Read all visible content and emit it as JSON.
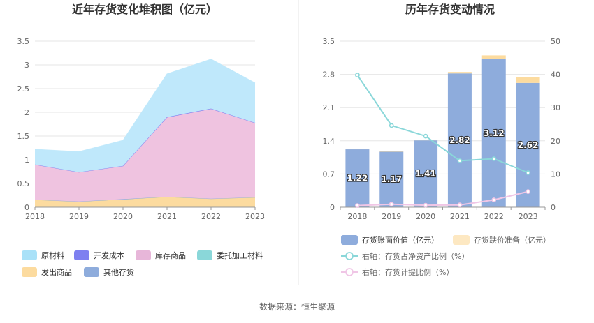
{
  "source": "数据来源：恒生聚源",
  "chart_data": [
    {
      "type": "area",
      "stacked": true,
      "title": "近年存货变化堆积图（亿元）",
      "x": [
        "2018",
        "2019",
        "2020",
        "2021",
        "2022",
        "2023"
      ],
      "ylim": [
        0,
        3.5
      ],
      "yticks": [
        "0",
        "0.5",
        "1",
        "1.5",
        "2",
        "2.5",
        "3",
        "3.5"
      ],
      "grid": true,
      "legend_position": "bottom",
      "series": [
        {
          "name": "发出商品",
          "color": "#fcdb9f",
          "values": [
            0.16,
            0.12,
            0.16,
            0.22,
            0.18,
            0.21
          ]
        },
        {
          "name": "其他存货",
          "color": "#8eacdc",
          "values": [
            0.0,
            0.0,
            0.01,
            0.0,
            0.0,
            0.0
          ]
        },
        {
          "name": "委托加工材料",
          "color": "#8ad7d9",
          "values": [
            0.0,
            0.0,
            0.0,
            0.0,
            0.0,
            0.0
          ]
        },
        {
          "name": "库存商品",
          "color": "#efc3e0",
          "values": [
            0.74,
            0.62,
            0.7,
            1.67,
            1.89,
            1.57
          ]
        },
        {
          "name": "开发成本",
          "color": "#7e80f0",
          "values": [
            0.0,
            0.0,
            0.0,
            0.01,
            0.01,
            0.0
          ]
        },
        {
          "name": "原材料",
          "color": "#bfe8fb",
          "values": [
            0.32,
            0.43,
            0.54,
            0.91,
            1.04,
            0.84
          ]
        }
      ],
      "legend": [
        {
          "name": "原材料",
          "color": "#a9e1f8"
        },
        {
          "name": "开发成本",
          "color": "#7e80f0"
        },
        {
          "name": "库存商品",
          "color": "#e7b6d9"
        },
        {
          "name": "委托加工材料",
          "color": "#8ad7d9"
        },
        {
          "name": "发出商品",
          "color": "#fcdb9f"
        },
        {
          "name": "其他存货",
          "color": "#8eacdc"
        }
      ]
    },
    {
      "type": "bar",
      "stacked": true,
      "title": "历年存货变动情况",
      "categories": [
        "2018",
        "2019",
        "2020",
        "2021",
        "2022",
        "2023"
      ],
      "ylim": [
        0,
        3.5
      ],
      "yticks": [
        "0",
        "0.7",
        "1.4",
        "2.1",
        "2.8",
        "3.5"
      ],
      "y2lim": [
        0,
        50
      ],
      "y2ticks": [
        "0",
        "10",
        "20",
        "30",
        "40",
        "50"
      ],
      "grid": true,
      "legend_position": "bottom",
      "series": [
        {
          "name": "存货账面价值（亿元）",
          "color": "#8eacdc",
          "axis": "left",
          "values": [
            1.22,
            1.17,
            1.41,
            2.82,
            3.12,
            2.62
          ],
          "labels": [
            "1.22",
            "1.17",
            "1.41",
            "2.82",
            "3.12",
            "2.62"
          ]
        },
        {
          "name": "存货跌价准备（亿元）",
          "color": "#fcdb9f",
          "axis": "left",
          "values": [
            0.01,
            0.01,
            0.01,
            0.03,
            0.08,
            0.13
          ]
        }
      ],
      "lines": [
        {
          "name": "右轴：存货占净资产比例（%）",
          "color": "#8ad7d9",
          "axis": "right",
          "values": [
            39.8,
            24.6,
            21.4,
            14.0,
            14.6,
            10.4
          ]
        },
        {
          "name": "右轴：存货计提比例（%）",
          "color": "#f0c6e6",
          "axis": "right",
          "values": [
            0.5,
            0.9,
            0.6,
            0.7,
            2.2,
            4.7
          ]
        }
      ]
    }
  ]
}
